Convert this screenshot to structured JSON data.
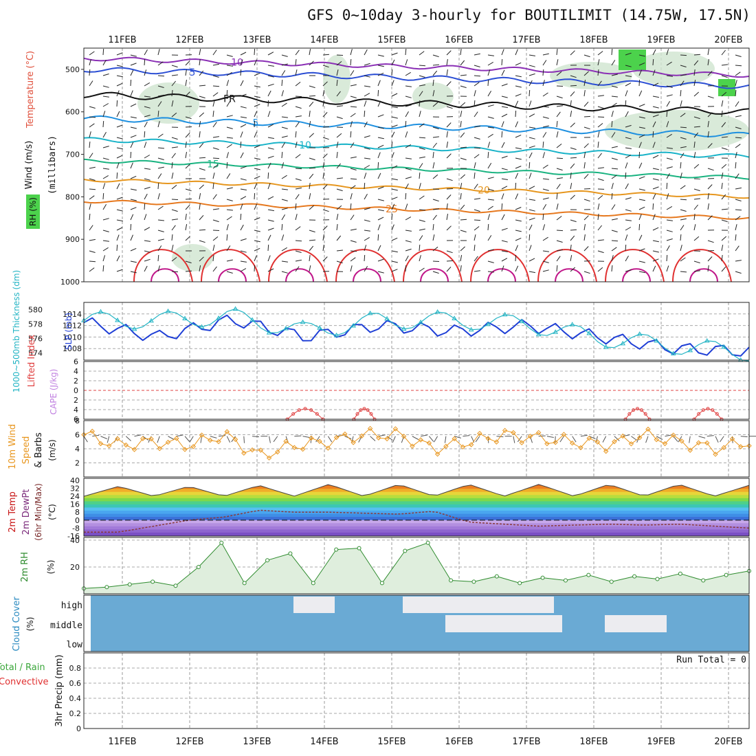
{
  "title": "GFS 0~10day 3-hourly for BOUTILIMIT (14.75W, 17.5N)",
  "run_total": "Run Total = 0",
  "dates": [
    "11FEB",
    "12FEB",
    "13FEB",
    "14FEB",
    "15FEB",
    "16FEB",
    "17FEB",
    "18FEB",
    "19FEB",
    "20FEB"
  ],
  "panel_labels": {
    "wind": "Wind (m/s)",
    "temperature": "Temperature (°C)",
    "millibars": "(millibars)",
    "rh": "RH (%)",
    "thickness": "1000~500mb Thickness (dm)",
    "slp": "SLP (mb)",
    "lifted": "Lifted Index",
    "cape": "CAPE (J/kg)",
    "wind10": "10m Wind",
    "speed": "Speed",
    "barbs": "& Barbs",
    "ms": "(m/s)",
    "temp2m": "2m Temp",
    "dewpt": "2m DewPt",
    "minmax": "(6hr Min/Max)",
    "degc": "(°C)",
    "rh2m": "2m RH",
    "pct": "(%)",
    "cloud": "Cloud Cover",
    "total_rain": "Total / Rain",
    "convective": "Convective",
    "precip": "3hr Precip (mm)"
  },
  "colors": {
    "slp_line": "#1f3fd6",
    "thickness_line": "#22b4c4",
    "wind10": "#e8961e",
    "temp_hot": "#c81414",
    "rh_fill": "#b5d9b5",
    "rh_line": "#2e8b2e",
    "cloud_blue": "#6aaad4",
    "cape": "#c080e0",
    "lifted": "#e04040"
  },
  "chart_data": [
    {
      "type": "line",
      "title": "",
      "xlabel": "",
      "ylabel": "Wind (m/s)",
      "ylim": [
        1000,
        450
      ],
      "yticks": [
        500,
        600,
        700,
        800,
        900,
        1000
      ],
      "isotherms": [
        {
          "label": "-10",
          "pressure": 476
        },
        {
          "label": "-5",
          "pressure": 505
        },
        {
          "label": "FR",
          "pressure": 575
        },
        {
          "label": "-5",
          "pressure": 630
        },
        {
          "label": "-10",
          "pressure": 685
        },
        {
          "label": "-15",
          "pressure": 750
        },
        {
          "label": "-20",
          "pressure": 800
        },
        {
          "label": "-25",
          "pressure": 840
        }
      ],
      "contour_labels": [
        "10",
        "5",
        "FR",
        "5",
        "10",
        "15",
        "20",
        "25",
        "25",
        "-10",
        "5",
        "FR",
        "5",
        "10",
        "15"
      ]
    },
    {
      "type": "line",
      "title": "",
      "x": [
        "11FEB",
        "12FEB",
        "13FEB",
        "14FEB",
        "15FEB",
        "16FEB",
        "17FEB",
        "18FEB",
        "19FEB",
        "20FEB"
      ],
      "series": [
        {
          "name": "SLP (mb)",
          "values": [
            1012.5,
            1010,
            1013,
            1010,
            1012,
            1011,
            1012,
            1010,
            1008,
            1007.5
          ]
        },
        {
          "name": "1000~500mb Thickness (dm)",
          "values": [
            578.5,
            578.5,
            579,
            577,
            578.5,
            578.5,
            578,
            576,
            575,
            574
          ]
        }
      ],
      "ylim_slp": [
        1006,
        1016
      ],
      "ylim_thickness": [
        573,
        581
      ],
      "slp_ticks": [
        1008,
        1010,
        1012,
        1014
      ],
      "thickness_ticks": [
        574,
        576,
        578,
        580
      ]
    },
    {
      "type": "line",
      "title": "",
      "ylabel": "Lifted Index",
      "ylim": [
        6,
        -6
      ],
      "yticks": [
        6,
        4,
        2,
        0,
        2,
        4,
        6
      ],
      "series": [
        {
          "name": "Lifted Index",
          "values": [
            6,
            6,
            6,
            5,
            6,
            5,
            6,
            6,
            3,
            3
          ]
        }
      ]
    },
    {
      "type": "line",
      "title": "",
      "ylabel": "Speed (m/s)",
      "ylim": [
        0,
        8
      ],
      "yticks": [
        2,
        4,
        6,
        8
      ],
      "series": [
        {
          "name": "10m Wind",
          "values": [
            6,
            4.5,
            5,
            4.5,
            6,
            3,
            4.5,
            5,
            6,
            6,
            4,
            5,
            6,
            5.5,
            5,
            4.5,
            6,
            5,
            4,
            5
          ]
        }
      ]
    },
    {
      "type": "area",
      "title": "",
      "ylabel": "(°C)",
      "ylim": [
        -16,
        42
      ],
      "yticks": [
        40,
        32,
        24,
        16,
        8,
        0,
        -8,
        -16
      ],
      "series": [
        {
          "name": "2m Temp",
          "values": [
            24,
            34,
            24,
            34,
            24,
            35,
            24,
            36,
            24,
            36,
            24,
            36,
            24,
            36,
            24,
            36,
            24,
            36,
            24,
            35
          ]
        },
        {
          "name": "2m DewPt",
          "values": [
            -12,
            -12,
            -6,
            0,
            3,
            10,
            8,
            8,
            7,
            6,
            9,
            -2,
            -4,
            -6,
            -5,
            -4,
            -5,
            -4,
            -6,
            -8
          ]
        }
      ]
    },
    {
      "type": "area",
      "title": "",
      "ylabel": "(%)",
      "ylim": [
        0,
        42
      ],
      "yticks": [
        20,
        40
      ],
      "series": [
        {
          "name": "2m RH",
          "values": [
            4,
            5,
            7,
            9,
            6,
            20,
            38,
            8,
            25,
            30,
            8,
            33,
            34,
            8,
            32,
            38,
            10,
            9,
            13,
            8,
            12,
            10,
            14,
            9,
            13,
            11,
            15,
            10,
            14,
            17
          ]
        }
      ]
    },
    {
      "type": "heatmap",
      "title": "",
      "ylabel": "(%)",
      "rows": [
        "high",
        "middle",
        "low"
      ]
    },
    {
      "type": "bar",
      "title": "",
      "ylabel": "3hr Precip (mm)",
      "ylim": [
        0,
        1
      ],
      "yticks": [
        0,
        0.2,
        0.4,
        0.6,
        0.8
      ],
      "values": [
        0,
        0,
        0,
        0,
        0,
        0,
        0,
        0,
        0,
        0
      ]
    }
  ]
}
